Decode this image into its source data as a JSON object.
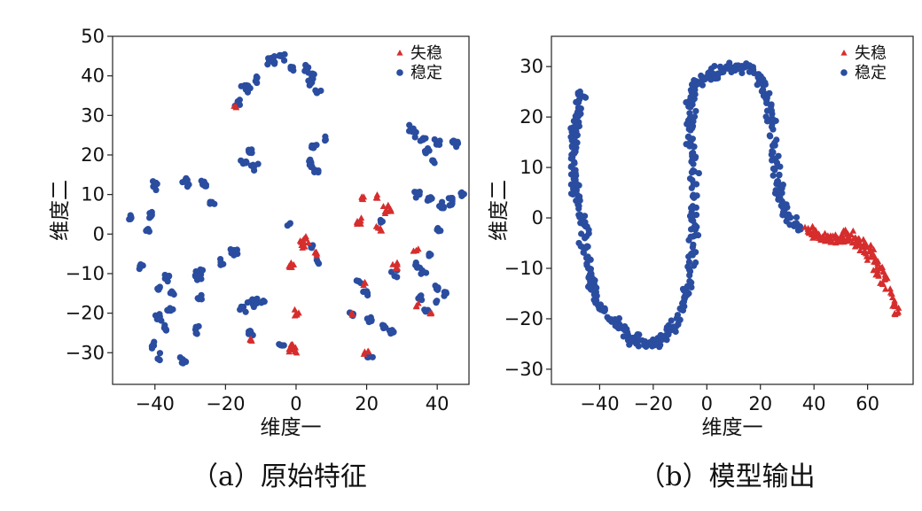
{
  "colors": {
    "unstable": "#d62d2d",
    "stable": "#2a4da0"
  },
  "chart_data": [
    {
      "type": "scatter",
      "caption": "（a）原始特征",
      "xlabel": "维度一",
      "ylabel": "维度二",
      "xlim": [
        -52,
        49
      ],
      "ylim": [
        -38,
        50
      ],
      "xticks": [
        -40,
        -20,
        0,
        20,
        40
      ],
      "yticks": [
        -30,
        -20,
        -10,
        0,
        10,
        20,
        30,
        40,
        50
      ],
      "grid": false,
      "legend_position": "top-right",
      "series": [
        {
          "name": "失稳",
          "marker": "triangle",
          "clusters": [
            {
              "cx": -17,
              "cy": 32,
              "r": 1.0,
              "n": 3
            },
            {
              "cx": -13,
              "cy": -27,
              "r": 1.0,
              "n": 4
            },
            {
              "cx": -1,
              "cy": -29,
              "r": 2.0,
              "n": 14
            },
            {
              "cx": 0,
              "cy": -20,
              "r": 1.2,
              "n": 6
            },
            {
              "cx": -1,
              "cy": -8,
              "r": 1.5,
              "n": 6
            },
            {
              "cx": 2,
              "cy": -2,
              "r": 2.5,
              "n": 14
            },
            {
              "cx": 6,
              "cy": -5,
              "r": 1.2,
              "n": 5
            },
            {
              "cx": 18,
              "cy": 3,
              "r": 1.5,
              "n": 8
            },
            {
              "cx": 19,
              "cy": 9,
              "r": 1.0,
              "n": 5
            },
            {
              "cx": 23,
              "cy": 9,
              "r": 1.2,
              "n": 4
            },
            {
              "cx": 26,
              "cy": 6,
              "r": 2.0,
              "n": 10
            },
            {
              "cx": 24,
              "cy": 1,
              "r": 1.5,
              "n": 6
            },
            {
              "cx": 28,
              "cy": -8,
              "r": 1.5,
              "n": 6
            },
            {
              "cx": 34,
              "cy": -4,
              "r": 1.2,
              "n": 5
            },
            {
              "cx": 19,
              "cy": -13,
              "r": 1.0,
              "n": 3
            },
            {
              "cx": 16,
              "cy": -20,
              "r": 1.0,
              "n": 3
            },
            {
              "cx": 20,
              "cy": -30,
              "r": 1.0,
              "n": 4
            },
            {
              "cx": 34,
              "cy": -18,
              "r": 1.0,
              "n": 3
            },
            {
              "cx": 38,
              "cy": -20,
              "r": 1.0,
              "n": 3
            }
          ]
        },
        {
          "name": "稳定",
          "marker": "circle",
          "clusters": [
            {
              "cx": -47,
              "cy": 4,
              "r": 1.3,
              "n": 6
            },
            {
              "cx": -44,
              "cy": -8,
              "r": 1.3,
              "n": 6
            },
            {
              "cx": -40,
              "cy": 12,
              "r": 1.8,
              "n": 10
            },
            {
              "cx": -41,
              "cy": 5,
              "r": 1.5,
              "n": 7
            },
            {
              "cx": -42,
              "cy": 1,
              "r": 1.3,
              "n": 5
            },
            {
              "cx": -39,
              "cy": -14,
              "r": 1.3,
              "n": 6
            },
            {
              "cx": -39,
              "cy": -21,
              "r": 1.3,
              "n": 5
            },
            {
              "cx": -37,
              "cy": -24,
              "r": 1.3,
              "n": 5
            },
            {
              "cx": -41,
              "cy": -28,
              "r": 1.3,
              "n": 6
            },
            {
              "cx": -39,
              "cy": -31,
              "r": 1.3,
              "n": 5
            },
            {
              "cx": -36,
              "cy": -11,
              "r": 1.5,
              "n": 6
            },
            {
              "cx": -35,
              "cy": -15,
              "r": 1.2,
              "n": 5
            },
            {
              "cx": -36,
              "cy": -19,
              "r": 1.2,
              "n": 5
            },
            {
              "cx": -32,
              "cy": -32,
              "r": 1.3,
              "n": 8
            },
            {
              "cx": -31,
              "cy": 13,
              "r": 1.8,
              "n": 10
            },
            {
              "cx": -26,
              "cy": 12,
              "r": 1.8,
              "n": 10
            },
            {
              "cx": -24,
              "cy": 8,
              "r": 1.3,
              "n": 5
            },
            {
              "cx": -28,
              "cy": -10,
              "r": 2.0,
              "n": 10
            },
            {
              "cx": -27,
              "cy": -16,
              "r": 1.5,
              "n": 6
            },
            {
              "cx": -28,
              "cy": -24,
              "r": 1.3,
              "n": 7
            },
            {
              "cx": -18,
              "cy": -4,
              "r": 1.8,
              "n": 10
            },
            {
              "cx": -21,
              "cy": -7,
              "r": 1.2,
              "n": 4
            },
            {
              "cx": -17,
              "cy": 33,
              "r": 1.5,
              "n": 8
            },
            {
              "cx": -14,
              "cy": 37,
              "r": 2.0,
              "n": 14
            },
            {
              "cx": -11,
              "cy": 39,
              "r": 1.5,
              "n": 6
            },
            {
              "cx": -7,
              "cy": 44,
              "r": 1.8,
              "n": 12
            },
            {
              "cx": -4,
              "cy": 45,
              "r": 1.3,
              "n": 6
            },
            {
              "cx": -1,
              "cy": 42,
              "r": 1.3,
              "n": 6
            },
            {
              "cx": 3,
              "cy": 42,
              "r": 1.5,
              "n": 8
            },
            {
              "cx": 5,
              "cy": 40,
              "r": 1.5,
              "n": 6
            },
            {
              "cx": 4,
              "cy": 38,
              "r": 1.3,
              "n": 5
            },
            {
              "cx": 6,
              "cy": 36,
              "r": 1.3,
              "n": 5
            },
            {
              "cx": -13,
              "cy": 21,
              "r": 1.3,
              "n": 6
            },
            {
              "cx": -15,
              "cy": 18,
              "r": 1.5,
              "n": 7
            },
            {
              "cx": -12,
              "cy": 17,
              "r": 1.5,
              "n": 7
            },
            {
              "cx": -12,
              "cy": -17,
              "r": 2.0,
              "n": 12
            },
            {
              "cx": -9,
              "cy": -17,
              "r": 1.2,
              "n": 5
            },
            {
              "cx": -15,
              "cy": -19,
              "r": 1.3,
              "n": 6
            },
            {
              "cx": -13,
              "cy": -25,
              "r": 1.3,
              "n": 7
            },
            {
              "cx": -4,
              "cy": -28,
              "r": 1.2,
              "n": 5
            },
            {
              "cx": 5,
              "cy": 22,
              "r": 1.3,
              "n": 6
            },
            {
              "cx": 4,
              "cy": 18,
              "r": 1.5,
              "n": 8
            },
            {
              "cx": 6,
              "cy": 16,
              "r": 1.3,
              "n": 6
            },
            {
              "cx": 8,
              "cy": 24,
              "r": 1.0,
              "n": 4
            },
            {
              "cx": 4,
              "cy": -3,
              "r": 1.2,
              "n": 4
            },
            {
              "cx": 6,
              "cy": -7,
              "r": 1.0,
              "n": 3
            },
            {
              "cx": -2,
              "cy": 2,
              "r": 1.0,
              "n": 3
            },
            {
              "cx": 16,
              "cy": -20,
              "r": 1.3,
              "n": 5
            },
            {
              "cx": 20,
              "cy": -15,
              "r": 1.2,
              "n": 5
            },
            {
              "cx": 18,
              "cy": -12,
              "r": 1.2,
              "n": 4
            },
            {
              "cx": 21,
              "cy": -22,
              "r": 1.3,
              "n": 6
            },
            {
              "cx": 25,
              "cy": -23,
              "r": 1.3,
              "n": 6
            },
            {
              "cx": 27,
              "cy": -25,
              "r": 1.3,
              "n": 6
            },
            {
              "cx": 21,
              "cy": -31,
              "r": 1.3,
              "n": 6
            },
            {
              "cx": 24,
              "cy": 3,
              "r": 1.0,
              "n": 3
            },
            {
              "cx": 28,
              "cy": -10,
              "r": 1.2,
              "n": 4
            },
            {
              "cx": 33,
              "cy": 26,
              "r": 1.8,
              "n": 10
            },
            {
              "cx": 36,
              "cy": 24,
              "r": 1.5,
              "n": 8
            },
            {
              "cx": 37,
              "cy": 21,
              "r": 1.3,
              "n": 6
            },
            {
              "cx": 40,
              "cy": 23,
              "r": 1.5,
              "n": 8
            },
            {
              "cx": 45,
              "cy": 23,
              "r": 1.5,
              "n": 10
            },
            {
              "cx": 39,
              "cy": 18,
              "r": 1.3,
              "n": 5
            },
            {
              "cx": 34,
              "cy": 10,
              "r": 1.5,
              "n": 7
            },
            {
              "cx": 38,
              "cy": 9,
              "r": 1.5,
              "n": 7
            },
            {
              "cx": 41,
              "cy": 7,
              "r": 1.5,
              "n": 8
            },
            {
              "cx": 44,
              "cy": 8,
              "r": 1.5,
              "n": 8
            },
            {
              "cx": 47,
              "cy": 10,
              "r": 1.2,
              "n": 4
            },
            {
              "cx": 40,
              "cy": 1,
              "r": 1.3,
              "n": 5
            },
            {
              "cx": 38,
              "cy": -5,
              "r": 1.3,
              "n": 5
            },
            {
              "cx": 34,
              "cy": -8,
              "r": 1.3,
              "n": 5
            },
            {
              "cx": 36,
              "cy": -10,
              "r": 1.2,
              "n": 4
            },
            {
              "cx": 40,
              "cy": -14,
              "r": 1.3,
              "n": 5
            },
            {
              "cx": 42,
              "cy": -15,
              "r": 1.2,
              "n": 4
            },
            {
              "cx": 35,
              "cy": -16,
              "r": 1.3,
              "n": 5
            },
            {
              "cx": 37,
              "cy": -19,
              "r": 1.2,
              "n": 4
            },
            {
              "cx": 40,
              "cy": -17,
              "r": 1.0,
              "n": 3
            }
          ]
        }
      ]
    },
    {
      "type": "scatter",
      "caption": "（b）模型输出",
      "xlabel": "维度一",
      "ylabel": "维度二",
      "xlim": [
        -58,
        77
      ],
      "ylim": [
        -33,
        36
      ],
      "xticks": [
        -40,
        -20,
        0,
        20,
        40,
        60
      ],
      "yticks": [
        -30,
        -20,
        -10,
        0,
        10,
        20,
        30
      ],
      "grid": false,
      "legend_position": "top-right",
      "series": [
        {
          "name": "失稳",
          "marker": "triangle",
          "path": [
            [
              37,
              -2
            ],
            [
              42,
              -4
            ],
            [
              47,
              -4
            ],
            [
              52,
              -4
            ],
            [
              57,
              -5
            ],
            [
              61,
              -7
            ],
            [
              64,
              -10
            ],
            [
              67,
              -13
            ],
            [
              69,
              -16
            ],
            [
              71,
              -19
            ]
          ],
          "jitter": [
            5,
            3.0
          ],
          "n": 150
        },
        {
          "name": "稳定",
          "marker": "circle",
          "path": [
            [
              -47,
              25
            ],
            [
              -49,
              18
            ],
            [
              -50,
              10
            ],
            [
              -48,
              3
            ],
            [
              -46,
              -3
            ],
            [
              -44,
              -10
            ],
            [
              -42,
              -16
            ],
            [
              -38,
              -19
            ],
            [
              -33,
              -21
            ],
            [
              -28,
              -24
            ],
            [
              -22,
              -25
            ],
            [
              -16,
              -24
            ],
            [
              -12,
              -21
            ],
            [
              -9,
              -18
            ],
            [
              -7,
              -14
            ],
            [
              -6,
              -8
            ],
            [
              -5,
              -2
            ],
            [
              -5,
              4
            ],
            [
              -5,
              10
            ],
            [
              -6,
              16
            ],
            [
              -6,
              22
            ],
            [
              -5,
              26
            ],
            [
              -1,
              28
            ],
            [
              4,
              29
            ],
            [
              9,
              30
            ],
            [
              14,
              30
            ],
            [
              18,
              29
            ],
            [
              21,
              26
            ],
            [
              24,
              22
            ],
            [
              25,
              16
            ],
            [
              26,
              10
            ],
            [
              27,
              5
            ],
            [
              29,
              1
            ],
            [
              32,
              -1
            ],
            [
              36,
              -2
            ]
          ],
          "jitter": [
            5,
            3.0
          ],
          "n": 560
        }
      ]
    }
  ]
}
